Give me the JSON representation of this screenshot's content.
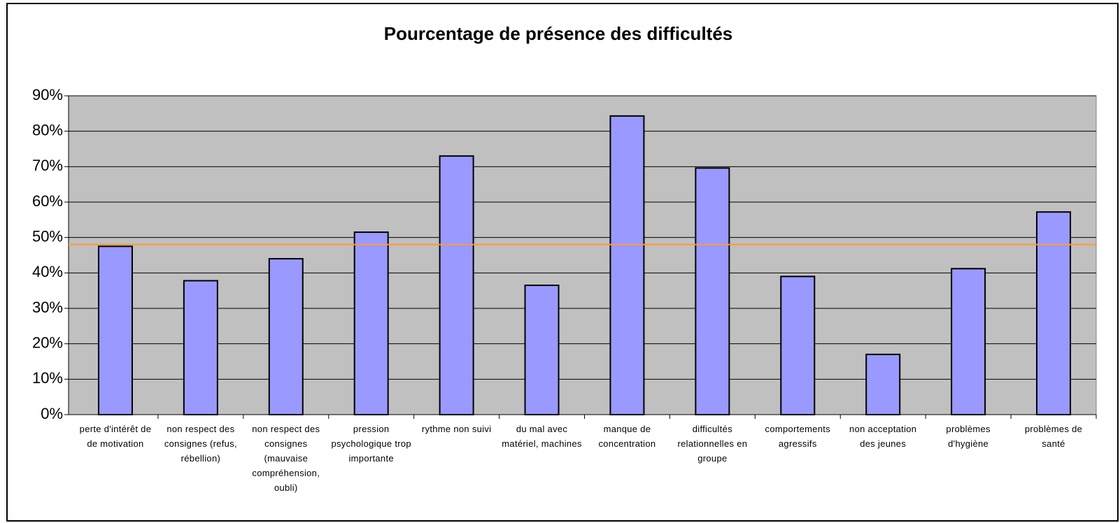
{
  "chart_data": {
    "type": "bar",
    "title": "Pourcentage de présence des difficultés",
    "categories": [
      "perte d'intérêt de de motivation",
      "non respect des consignes (refus, rébellion)",
      "non respect des consignes (mauvaise compréhension, oubli)",
      "pression psychologique trop importante",
      "rythme non suivi",
      "du mal avec matériel, machines",
      "manque de concentration",
      "difficultés relationnelles en groupe",
      "comportements agressifs",
      "non acceptation des jeunes",
      "problèmes d'hygiène",
      "problèmes de santé"
    ],
    "values": [
      47.5,
      37.8,
      44,
      51.5,
      73,
      36.5,
      84.3,
      69.6,
      39,
      17,
      41.2,
      57.2
    ],
    "color": "#9999ff",
    "reference_line": {
      "value": 48,
      "color": "#ff9933"
    },
    "ylim": [
      0,
      90
    ],
    "yticks": [
      {
        "value": 0,
        "label": "0%"
      },
      {
        "value": 10,
        "label": "10%"
      },
      {
        "value": 20,
        "label": "20%"
      },
      {
        "value": 30,
        "label": "30%"
      },
      {
        "value": 40,
        "label": "40%"
      },
      {
        "value": 50,
        "label": "50%"
      },
      {
        "value": 60,
        "label": "60%"
      },
      {
        "value": 70,
        "label": "70%"
      },
      {
        "value": 80,
        "label": "80%"
      },
      {
        "value": 90,
        "label": "90%"
      }
    ],
    "grid": true,
    "background": "#c0c0c0"
  }
}
